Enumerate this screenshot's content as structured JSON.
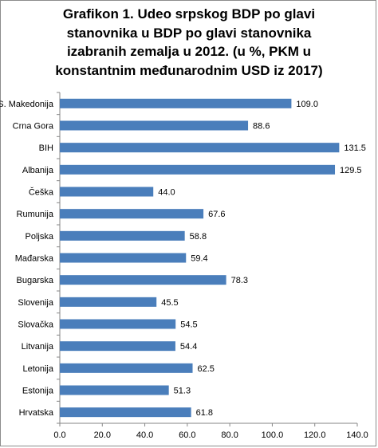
{
  "chart_data": {
    "type": "bar",
    "orientation": "horizontal",
    "title_lines": [
      "Grafikon 1. Udeo srpskog BDP po glavi",
      "stanovnika u BDP po glavi stanovnika",
      "izabranih zemalja u 2012. (u %, PKM u",
      "konstantnim međunarodnim USD iz 2017)"
    ],
    "categories": [
      "S. Makedonija",
      "Crna Gora",
      "BIH",
      "Albanija",
      "Češka",
      "Rumunija",
      "Poljska",
      "Mađarska",
      "Bugarska",
      "Slovenija",
      "Slovačka",
      "Litvanija",
      "Letonija",
      "Estonija",
      "Hrvatska"
    ],
    "values": [
      109.0,
      88.6,
      131.5,
      129.5,
      44.0,
      67.6,
      58.8,
      59.4,
      78.3,
      45.5,
      54.5,
      54.4,
      62.5,
      51.3,
      61.8
    ],
    "value_labels": [
      "109.0",
      "88.6",
      "131.5",
      "129.5",
      "44.0",
      "67.6",
      "58.8",
      "59.4",
      "78.3",
      "45.5",
      "54.5",
      "54.4",
      "62.5",
      "51.3",
      "61.8"
    ],
    "xlim": [
      0,
      140
    ],
    "x_ticks": [
      "0.0",
      "20.0",
      "40.0",
      "60.0",
      "80.0",
      "100.0",
      "120.0",
      "140.0"
    ],
    "bar_color": "#4a7ebb",
    "grid": false
  }
}
